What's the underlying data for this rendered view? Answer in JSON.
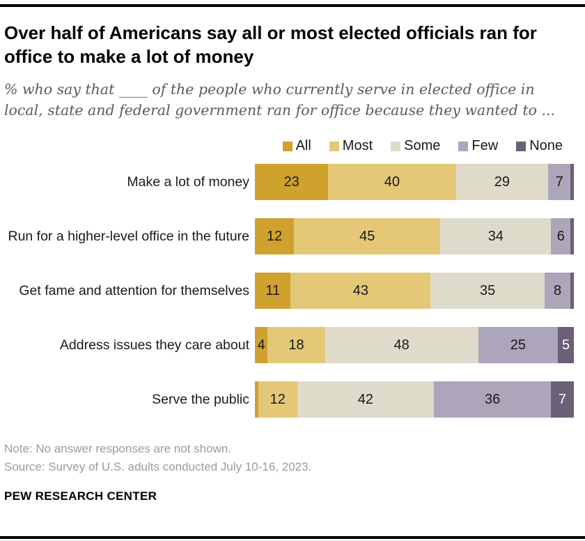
{
  "header": {
    "title": "Over half of Americans say all or most elected officials ran for office to make a lot of money",
    "subtitle": "% who say that ____ of the people who currently serve in elected office in local, state and federal government ran for office because they wanted to ..."
  },
  "chart_data": {
    "type": "bar",
    "stacked": true,
    "orientation": "horizontal",
    "legend_position": "top-right",
    "categories": [
      "Make a lot of money",
      "Run for a higher-level office in the future",
      "Get fame and attention for themselves",
      "Address issues they care about",
      "Serve the public"
    ],
    "series": [
      {
        "name": "All",
        "color": "#cfa22e",
        "label_color": "#1a1a1a",
        "values": [
          23,
          12,
          11,
          4,
          1
        ]
      },
      {
        "name": "Most",
        "color": "#e4c878",
        "label_color": "#1a1a1a",
        "values": [
          40,
          45,
          43,
          18,
          12
        ]
      },
      {
        "name": "Some",
        "color": "#dfdbcb",
        "label_color": "#1a1a1a",
        "values": [
          29,
          34,
          35,
          48,
          42
        ]
      },
      {
        "name": "Few",
        "color": "#ada5ba",
        "label_color": "#1a1a1a",
        "values": [
          7,
          6,
          8,
          25,
          36
        ]
      },
      {
        "name": "None",
        "color": "#6b6078",
        "label_color": "#ffffff",
        "values": [
          1,
          1,
          1,
          5,
          7
        ]
      }
    ],
    "value_label_min": 4
  },
  "footer": {
    "note": "Note: No answer responses are not shown.",
    "source": "Source: Survey of U.S. adults conducted July 10-16, 2023.",
    "brand": "PEW RESEARCH CENTER"
  }
}
